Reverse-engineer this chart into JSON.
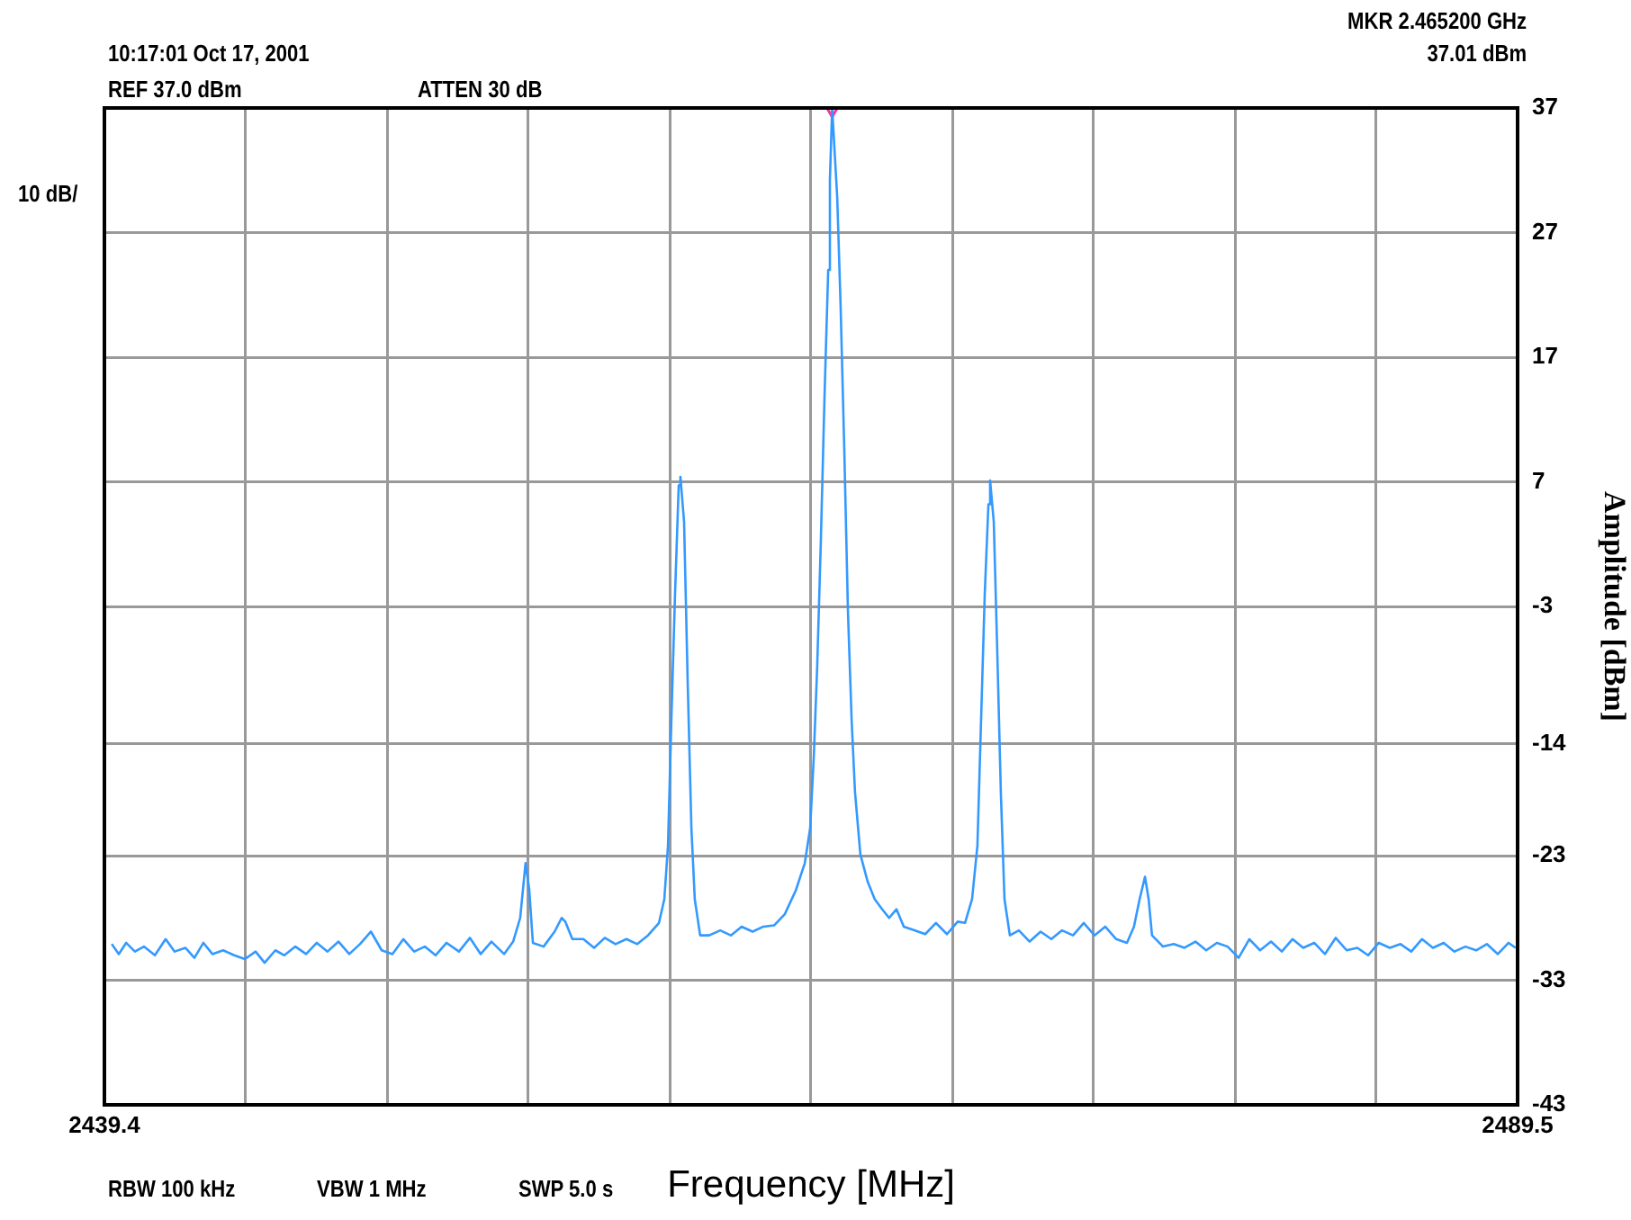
{
  "chart_data": {
    "type": "line",
    "xlabel": "Frequency [MHz]",
    "ylabel": "Amplitude [dBm]",
    "annotations": [
      "10:17:01 Oct 17, 2001",
      "REF 37.0 dBm",
      "ATTEN 30 dB",
      "MKR 2.465200 GHz",
      "37.01 dBm",
      "10 dB/",
      "RBW 100 kHz",
      "VBW 1 MHz",
      "SWP 5.0 s"
    ],
    "xlim": [
      2439.4,
      2489.5
    ],
    "xticks": [
      2439.4,
      {
        "value": 2444.41,
        "label": null
      },
      {
        "value": 2449.42,
        "label": null
      },
      {
        "value": 2454.43,
        "label": null
      },
      {
        "value": 2459.44,
        "label": null
      },
      {
        "value": 2464.45,
        "label": null
      },
      {
        "value": 2469.46,
        "label": null
      },
      {
        "value": 2474.47,
        "label": null
      },
      {
        "value": 2479.48,
        "label": null
      },
      {
        "value": 2484.49,
        "label": null
      },
      2489.5
    ],
    "ylim": [
      -43,
      37
    ],
    "yticks": [
      37,
      27,
      17,
      7,
      -3,
      -14,
      -23,
      -33,
      -43
    ],
    "grid": true,
    "legend": false,
    "marker": "none",
    "line_style": "solid",
    "series": [
      {
        "color": "#3399ff",
        "x": [
          2439.66,
          2439.91,
          2440.17,
          2440.48,
          2440.8,
          2441.19,
          2441.57,
          2441.89,
          2442.27,
          2442.59,
          2442.91,
          2443.23,
          2443.61,
          2444.0,
          2444.38,
          2444.76,
          2445.08,
          2445.46,
          2445.78,
          2446.17,
          2446.55,
          2446.93,
          2447.31,
          2447.7,
          2448.08,
          2448.46,
          2448.85,
          2449.23,
          2449.61,
          2450.0,
          2450.38,
          2450.76,
          2451.14,
          2451.53,
          2451.97,
          2452.36,
          2452.74,
          2453.12,
          2453.57,
          2453.89,
          2454.14,
          2454.33,
          2454.46,
          2454.59,
          2454.97,
          2455.36,
          2455.61,
          2455.74,
          2455.99,
          2456.38,
          2456.76,
          2457.14,
          2457.52,
          2457.91,
          2458.29,
          2458.67,
          2459.06,
          2459.25,
          2459.38,
          2459.5,
          2459.63,
          2459.76,
          2459.82,
          2459.95,
          2460.08,
          2460.21,
          2460.33,
          2460.52,
          2460.84,
          2461.23,
          2461.61,
          2461.99,
          2462.38,
          2462.76,
          2463.14,
          2463.52,
          2463.91,
          2464.23,
          2464.42,
          2464.55,
          2464.67,
          2464.8,
          2464.93,
          2465.06,
          2465.12,
          2465.2,
          2465.38,
          2465.5,
          2465.63,
          2465.76,
          2465.89,
          2466.01,
          2466.2,
          2466.46,
          2466.71,
          2466.97,
          2467.22,
          2467.48,
          2467.74,
          2468.12,
          2468.5,
          2468.88,
          2469.27,
          2469.65,
          2469.91,
          2470.16,
          2470.35,
          2470.48,
          2470.61,
          2470.74,
          2470.8,
          2470.93,
          2471.05,
          2471.18,
          2471.31,
          2471.5,
          2471.82,
          2472.2,
          2472.59,
          2472.97,
          2473.35,
          2473.74,
          2474.12,
          2474.5,
          2474.88,
          2475.27,
          2475.65,
          2475.9,
          2476.1,
          2476.29,
          2476.42,
          2476.54,
          2476.93,
          2477.31,
          2477.69,
          2478.08,
          2478.46,
          2478.84,
          2479.22,
          2479.61,
          2479.99,
          2480.37,
          2480.76,
          2481.14,
          2481.52,
          2481.9,
          2482.29,
          2482.67,
          2483.05,
          2483.44,
          2483.82,
          2484.2,
          2484.58,
          2484.97,
          2485.35,
          2485.73,
          2486.11,
          2486.5,
          2486.88,
          2487.26,
          2487.65,
          2488.03,
          2488.41,
          2488.8,
          2489.18,
          2489.43
        ],
        "values": [
          -30.1,
          -30.9,
          -30.0,
          -30.7,
          -30.3,
          -31.0,
          -29.7,
          -30.7,
          -30.4,
          -31.2,
          -30.0,
          -30.9,
          -30.6,
          -31.0,
          -31.3,
          -30.7,
          -31.6,
          -30.6,
          -31.0,
          -30.3,
          -30.9,
          -30.0,
          -30.7,
          -29.9,
          -30.9,
          -30.1,
          -29.1,
          -30.6,
          -30.9,
          -29.7,
          -30.7,
          -30.3,
          -31.0,
          -30.0,
          -30.7,
          -29.6,
          -30.9,
          -29.9,
          -30.9,
          -29.9,
          -28.0,
          -23.6,
          -25.7,
          -30.0,
          -30.3,
          -29.1,
          -28.0,
          -28.3,
          -29.7,
          -29.7,
          -30.4,
          -29.6,
          -30.1,
          -29.7,
          -30.1,
          -29.4,
          -28.4,
          -26.5,
          -22.2,
          -12.1,
          -2.0,
          6.7,
          7.4,
          3.8,
          -9.2,
          -20.8,
          -26.5,
          -29.4,
          -29.4,
          -29.0,
          -29.4,
          -28.7,
          -29.1,
          -28.7,
          -28.6,
          -27.7,
          -25.8,
          -23.6,
          -20.8,
          -15.0,
          -7.8,
          2.3,
          13.9,
          24.0,
          31.2,
          37.0,
          29.8,
          21.1,
          9.6,
          -3.4,
          -12.1,
          -17.9,
          -22.9,
          -25.1,
          -26.5,
          -27.3,
          -28.0,
          -27.3,
          -28.7,
          -29.0,
          -29.3,
          -28.4,
          -29.3,
          -28.3,
          -28.4,
          -26.5,
          -22.2,
          -12.1,
          -2.0,
          5.2,
          7.1,
          3.8,
          -6.3,
          -17.9,
          -26.5,
          -29.4,
          -29.0,
          -29.9,
          -29.1,
          -29.7,
          -29.0,
          -29.4,
          -28.4,
          -29.4,
          -28.7,
          -29.7,
          -30.0,
          -28.7,
          -26.5,
          -24.7,
          -26.5,
          -29.4,
          -30.3,
          -30.1,
          -30.4,
          -29.9,
          -30.6,
          -30.0,
          -30.3,
          -31.2,
          -29.7,
          -30.6,
          -29.9,
          -30.7,
          -29.7,
          -30.4,
          -30.0,
          -30.9,
          -29.6,
          -30.6,
          -30.4,
          -31.0,
          -30.0,
          -30.4,
          -30.1,
          -30.7,
          -29.7,
          -30.4,
          -30.0,
          -30.7,
          -30.3,
          -30.6,
          -30.1,
          -30.9,
          -30.0,
          -30.4
        ]
      },
      {
        "type": "scatter",
        "color": "#ff3399",
        "marker": "triangle",
        "x": [
          2465.2
        ],
        "values": [
          37.0
        ]
      }
    ]
  }
}
